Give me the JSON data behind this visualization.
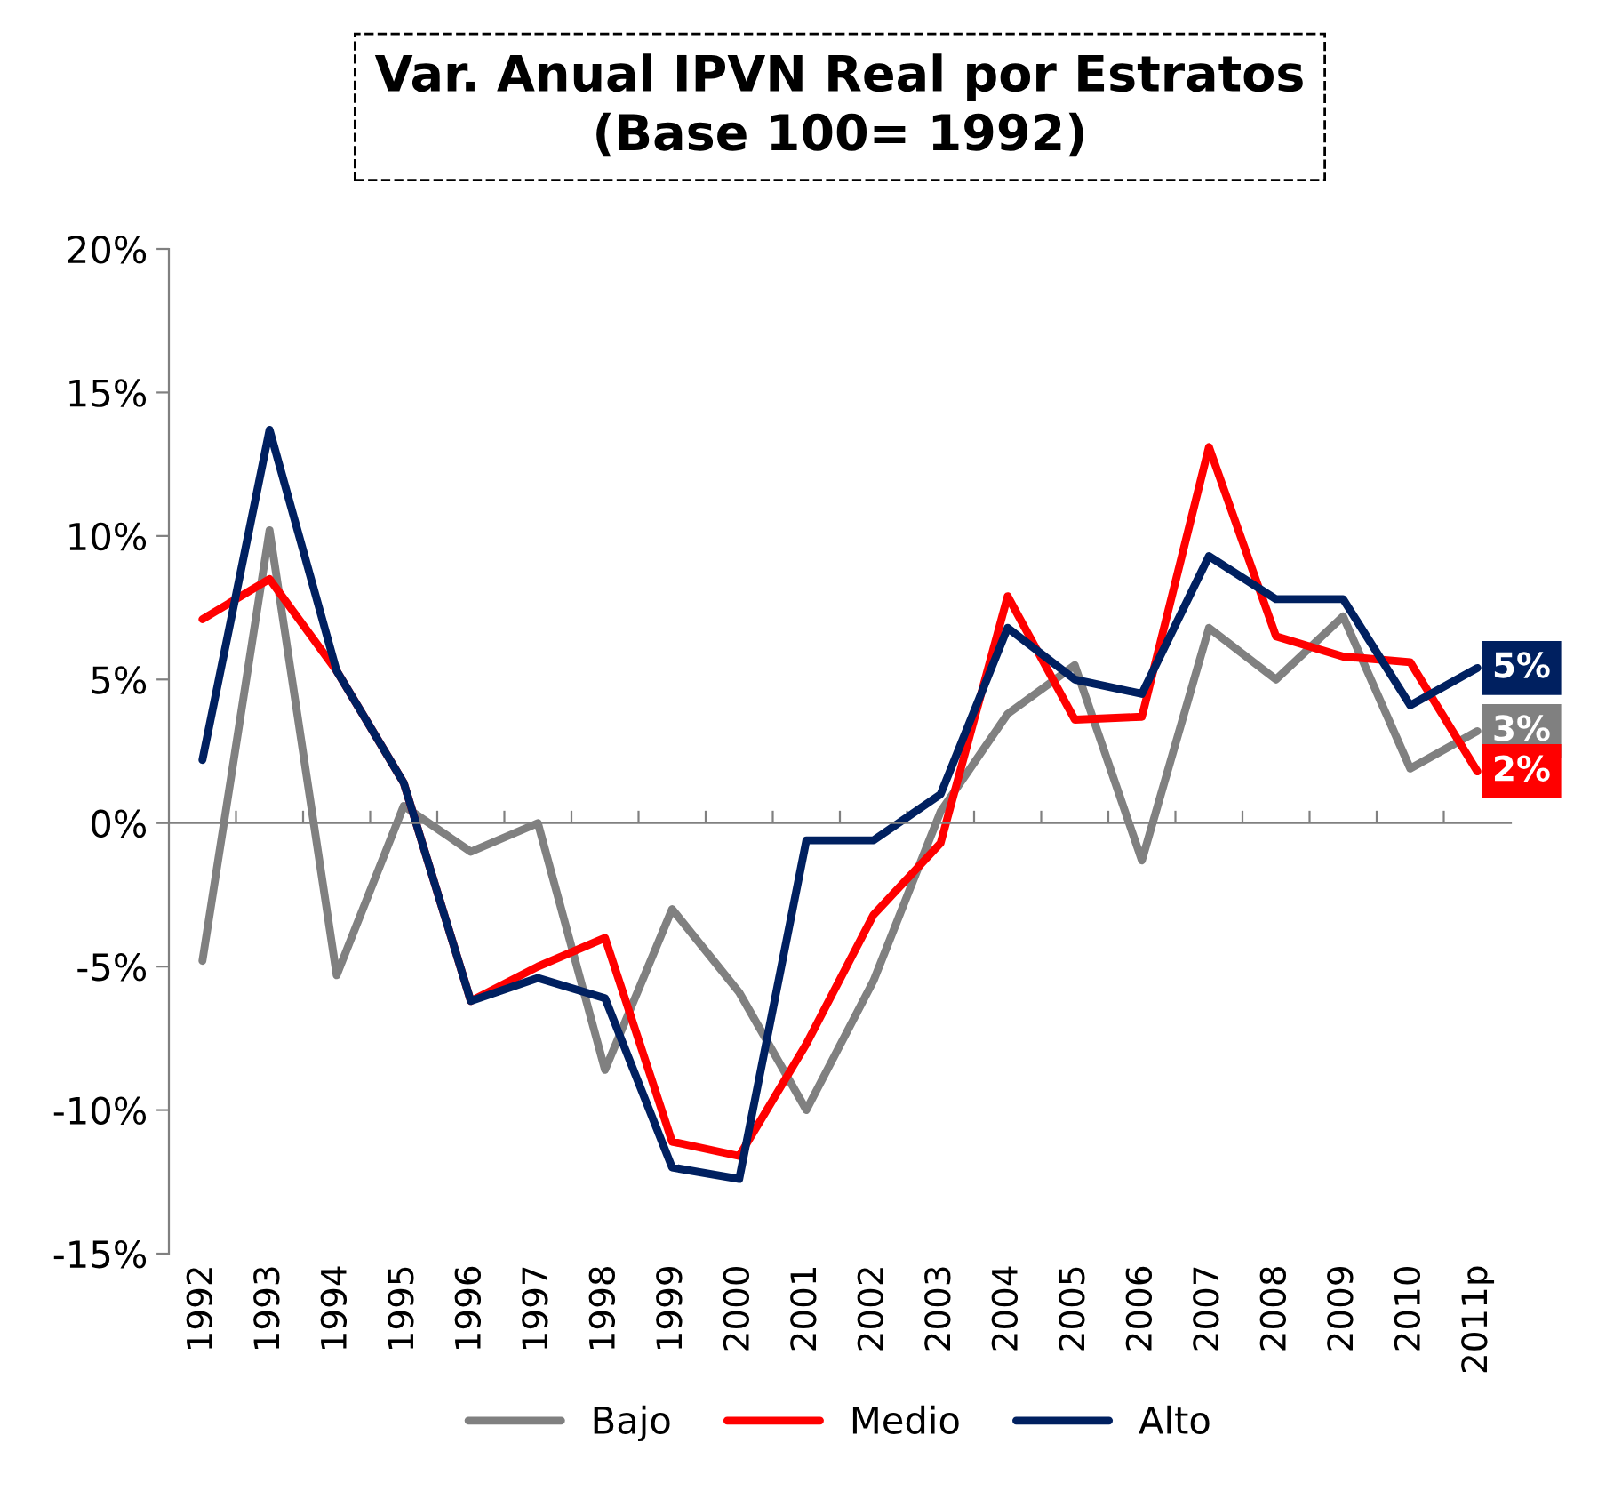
{
  "chart_data": {
    "type": "line",
    "title": "Var. Anual IPVN Real por Estratos\n(Base 100= 1992)",
    "categories": [
      "1992",
      "1993",
      "1994",
      "1995",
      "1996",
      "1997",
      "1998",
      "1999",
      "2000",
      "2001",
      "2002",
      "2003",
      "2004",
      "2005",
      "2006",
      "2007",
      "2008",
      "2009",
      "2010",
      "2011p"
    ],
    "series": [
      {
        "name": "Bajo",
        "color": "#808080",
        "values": [
          -4.8,
          10.2,
          -5.3,
          0.6,
          -1.0,
          0.0,
          -8.6,
          -3.0,
          -5.9,
          -10.0,
          -5.5,
          0.4,
          3.8,
          5.5,
          -1.3,
          6.8,
          5.0,
          7.2,
          1.9,
          3.2
        ],
        "value_labels": [
          null,
          null,
          null,
          null,
          null,
          null,
          null,
          null,
          null,
          null,
          null,
          null,
          null,
          null,
          null,
          null,
          null,
          null,
          null,
          "3%"
        ]
      },
      {
        "name": "Medio",
        "color": "#ff0000",
        "values": [
          7.1,
          8.5,
          5.3,
          1.4,
          -6.2,
          -5.0,
          -4.0,
          -11.1,
          -11.6,
          -7.7,
          -3.2,
          -0.7,
          7.9,
          3.6,
          3.7,
          13.1,
          6.5,
          5.8,
          5.6,
          1.8
        ],
        "value_labels": [
          null,
          null,
          null,
          null,
          null,
          null,
          null,
          null,
          null,
          null,
          null,
          null,
          null,
          null,
          null,
          null,
          null,
          null,
          null,
          "2%"
        ]
      },
      {
        "name": "Alto",
        "color": "#002060",
        "values": [
          2.2,
          13.7,
          5.3,
          1.4,
          -6.2,
          -5.4,
          -6.1,
          -12.0,
          -12.4,
          -0.6,
          -0.6,
          1.0,
          6.8,
          5.0,
          4.5,
          9.3,
          7.8,
          7.8,
          4.1,
          5.4
        ],
        "value_labels": [
          null,
          null,
          null,
          null,
          null,
          null,
          null,
          null,
          null,
          null,
          null,
          null,
          null,
          null,
          null,
          null,
          null,
          null,
          null,
          "5%"
        ]
      }
    ],
    "ylim": [
      -15,
      20
    ],
    "yticks": [
      {
        "value": -15,
        "label": "-15%"
      },
      {
        "value": -10,
        "label": "-10%"
      },
      {
        "value": -5,
        "label": "-5%"
      },
      {
        "value": 0,
        "label": "0%"
      },
      {
        "value": 5,
        "label": "5%"
      },
      {
        "value": 10,
        "label": "10%"
      },
      {
        "value": 15,
        "label": "15%"
      },
      {
        "value": 20,
        "label": "20%"
      }
    ],
    "legend": "bottom",
    "marker": "none",
    "line_style": "solid"
  }
}
